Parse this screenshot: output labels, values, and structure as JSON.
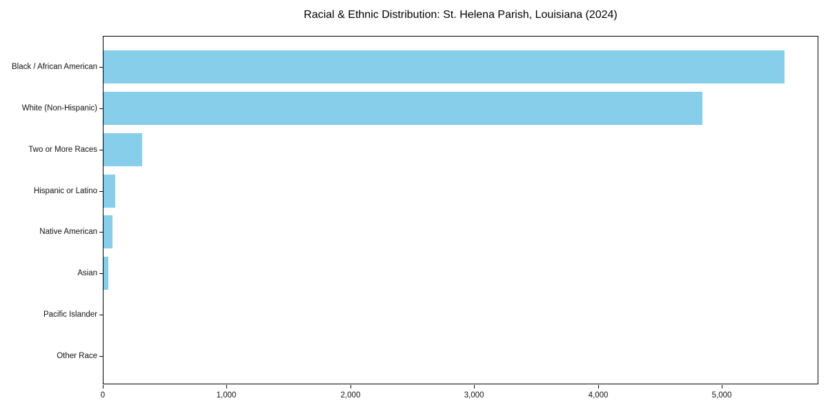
{
  "chart_data": {
    "type": "bar",
    "orientation": "horizontal",
    "title": "Racial & Ethnic Distribution: St. Helena Parish, Louisiana (2024)",
    "categories": [
      "Black / African American",
      "White (Non-Hispanic)",
      "Two or More Races",
      "Hispanic or Latino",
      "Native American",
      "Asian",
      "Pacific Islander",
      "Other Race"
    ],
    "values": [
      5500,
      4840,
      310,
      95,
      70,
      40,
      0,
      0
    ],
    "xlabel": "",
    "ylabel": "",
    "xlim": [
      0,
      5780
    ],
    "x_ticks": [
      0,
      1000,
      2000,
      3000,
      4000,
      5000
    ],
    "x_tick_labels": [
      "0",
      "1,000",
      "2,000",
      "3,000",
      "4,000",
      "5,000"
    ],
    "bar_color": "#87CEEB",
    "frame_color": "#000000",
    "grid": false,
    "legend_position": "none"
  }
}
